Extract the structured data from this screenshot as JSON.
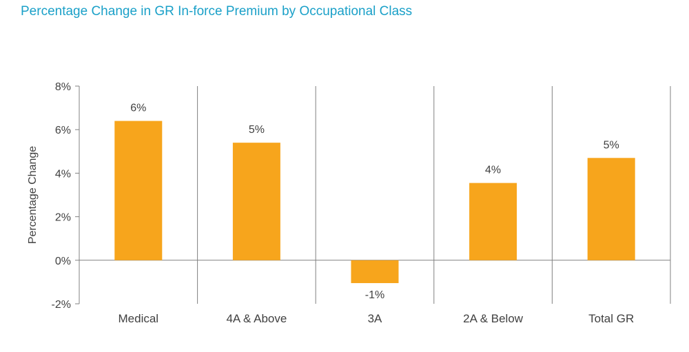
{
  "chart_data": {
    "type": "bar",
    "title": "Percentage Change in GR In-force Premium by Occupational Class",
    "xlabel": "",
    "ylabel": "Percentage Change",
    "categories": [
      "Medical",
      "4A & Above",
      "3A",
      "2A & Below",
      "Total GR"
    ],
    "values": [
      6.4,
      5.4,
      -1.05,
      3.55,
      4.7
    ],
    "data_labels": [
      "6%",
      "5%",
      "-1%",
      "4%",
      "5%"
    ],
    "ylim": [
      -2,
      8
    ],
    "yticks": [
      -2,
      0,
      2,
      4,
      6,
      8
    ],
    "ytick_labels": [
      "-2%",
      "0%",
      "2%",
      "4%",
      "6%",
      "8%"
    ],
    "grid": false,
    "category_separators": true,
    "legend": "none",
    "colors": {
      "bar": "#f7a51c",
      "title": "#1aa0c8",
      "axis": "#808080",
      "text": "#404040"
    }
  }
}
